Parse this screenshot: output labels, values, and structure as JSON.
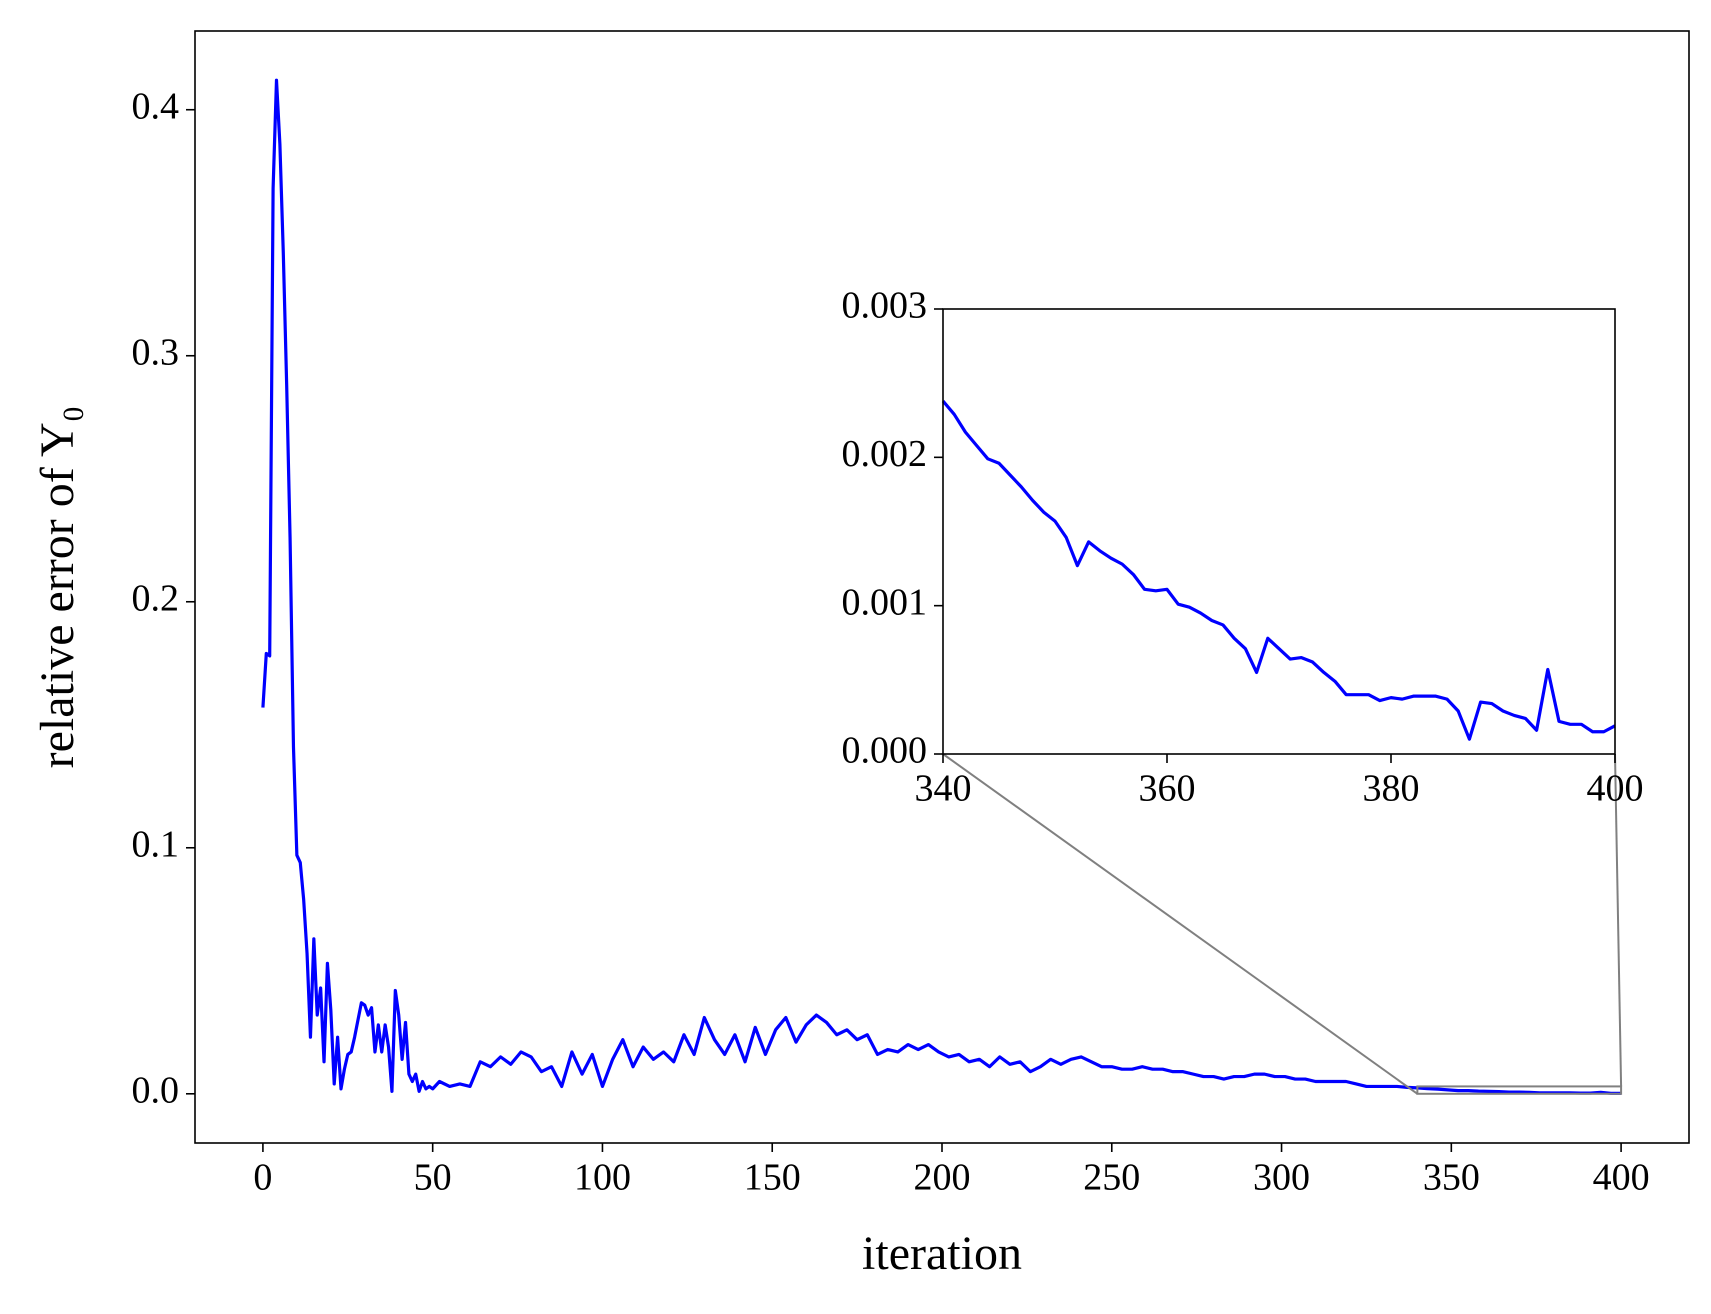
{
  "chart_data": [
    {
      "type": "line",
      "xlabel": "iteration",
      "ylabel": "relative error of Y₀",
      "color": "#0000ff",
      "xlim": [
        -20,
        420
      ],
      "ylim": [
        -0.02,
        0.432
      ],
      "xticks": [
        0,
        50,
        100,
        150,
        200,
        250,
        300,
        350,
        400
      ],
      "yticks": [
        {
          "value": 0,
          "label": "0.0"
        },
        0.1,
        0.2,
        0.3,
        0.4
      ],
      "x": [
        0,
        1,
        2,
        3,
        4,
        5,
        6,
        7,
        8,
        9,
        10,
        11,
        12,
        13,
        14,
        15,
        16,
        17,
        18,
        19,
        20,
        21,
        22,
        23,
        24,
        25,
        26,
        27,
        28,
        29,
        30,
        31,
        32,
        33,
        34,
        35,
        36,
        37,
        38,
        39,
        40,
        41,
        42,
        43,
        44,
        45,
        46,
        47,
        48,
        49,
        50,
        52,
        55,
        58,
        61,
        64,
        67,
        70,
        73,
        76,
        79,
        82,
        85,
        88,
        91,
        94,
        97,
        100,
        103,
        106,
        109,
        112,
        115,
        118,
        121,
        124,
        127,
        130,
        133,
        136,
        139,
        142,
        145,
        148,
        151,
        154,
        157,
        160,
        163,
        166,
        169,
        172,
        175,
        178,
        181,
        184,
        187,
        190,
        193,
        196,
        199,
        202,
        205,
        208,
        211,
        214,
        217,
        220,
        223,
        226,
        229,
        232,
        235,
        238,
        241,
        244,
        247,
        250,
        253,
        256,
        259,
        262,
        265,
        268,
        271,
        274,
        277,
        280,
        283,
        286,
        289,
        292,
        295,
        298,
        301,
        304,
        307,
        310,
        313,
        316,
        319,
        322,
        325,
        328,
        331,
        334,
        337,
        340,
        343,
        346,
        349,
        352,
        355,
        358,
        361,
        364,
        367,
        370,
        373,
        376,
        379,
        382,
        385,
        388,
        391,
        394,
        397,
        400
      ],
      "values": [
        0.157,
        0.179,
        0.178,
        0.368,
        0.412,
        0.386,
        0.342,
        0.288,
        0.226,
        0.141,
        0.097,
        0.094,
        0.079,
        0.057,
        0.023,
        0.063,
        0.032,
        0.043,
        0.013,
        0.053,
        0.034,
        0.004,
        0.023,
        0.002,
        0.01,
        0.016,
        0.017,
        0.023,
        0.03,
        0.037,
        0.036,
        0.032,
        0.035,
        0.017,
        0.028,
        0.017,
        0.028,
        0.019,
        0.001,
        0.042,
        0.032,
        0.014,
        0.029,
        0.008,
        0.005,
        0.008,
        0.001,
        0.005,
        0.002,
        0.003,
        0.002,
        0.005,
        0.003,
        0.004,
        0.003,
        0.013,
        0.011,
        0.015,
        0.012,
        0.017,
        0.015,
        0.009,
        0.011,
        0.003,
        0.017,
        0.008,
        0.016,
        0.003,
        0.014,
        0.022,
        0.011,
        0.019,
        0.014,
        0.017,
        0.013,
        0.024,
        0.016,
        0.031,
        0.022,
        0.016,
        0.024,
        0.013,
        0.027,
        0.016,
        0.026,
        0.031,
        0.021,
        0.028,
        0.032,
        0.029,
        0.024,
        0.026,
        0.022,
        0.024,
        0.016,
        0.018,
        0.017,
        0.02,
        0.018,
        0.02,
        0.017,
        0.015,
        0.016,
        0.013,
        0.014,
        0.011,
        0.015,
        0.012,
        0.013,
        0.009,
        0.011,
        0.014,
        0.012,
        0.014,
        0.015,
        0.013,
        0.011,
        0.011,
        0.01,
        0.01,
        0.011,
        0.01,
        0.01,
        0.009,
        0.009,
        0.008,
        0.007,
        0.007,
        0.006,
        0.007,
        0.007,
        0.008,
        0.008,
        0.007,
        0.007,
        0.006,
        0.006,
        0.005,
        0.005,
        0.005,
        0.005,
        0.004,
        0.003,
        0.003,
        0.003,
        0.003,
        0.0026,
        0.0024,
        0.0021,
        0.0019,
        0.0016,
        0.0013,
        0.0013,
        0.0011,
        0.001,
        0.0009,
        0.0007,
        0.0007,
        0.0006,
        0.0004,
        0.0004,
        0.0004,
        0.0004,
        0.0003,
        0.0003,
        0.0006,
        0.0002,
        0.0002
      ]
    },
    {
      "type": "line",
      "color": "#0000ff",
      "xlim": [
        340,
        400
      ],
      "ylim": [
        0,
        0.003
      ],
      "xticks": [
        340,
        360,
        380,
        400
      ],
      "yticks": [
        {
          "value": 0,
          "label": "0.000"
        },
        {
          "value": 0.001,
          "label": "0.001"
        },
        {
          "value": 0.002,
          "label": "0.002"
        },
        {
          "value": 0.003,
          "label": "0.003"
        }
      ],
      "x": [
        340,
        341,
        342,
        343,
        344,
        345,
        346,
        347,
        348,
        349,
        350,
        351,
        352,
        353,
        354,
        355,
        356,
        357,
        358,
        359,
        360,
        361,
        362,
        363,
        364,
        365,
        366,
        367,
        368,
        369,
        370,
        371,
        372,
        373,
        374,
        375,
        376,
        377,
        378,
        379,
        380,
        381,
        382,
        383,
        384,
        385,
        386,
        387,
        388,
        389,
        390,
        391,
        392,
        393,
        394,
        395,
        396,
        397,
        398,
        399,
        400
      ],
      "values": [
        0.00238,
        0.00229,
        0.00217,
        0.00208,
        0.00199,
        0.00196,
        0.00188,
        0.0018,
        0.00171,
        0.00163,
        0.00157,
        0.00146,
        0.00127,
        0.00143,
        0.00137,
        0.00132,
        0.00128,
        0.00121,
        0.00111,
        0.0011,
        0.00111,
        0.00101,
        0.00099,
        0.00095,
        0.0009,
        0.00087,
        0.00078,
        0.00071,
        0.00055,
        0.00078,
        0.00071,
        0.00064,
        0.00065,
        0.00062,
        0.00055,
        0.00049,
        0.0004,
        0.0004,
        0.0004,
        0.00036,
        0.00038,
        0.00037,
        0.00039,
        0.00039,
        0.00039,
        0.00037,
        0.00029,
        0.0001,
        0.00035,
        0.00034,
        0.00029,
        0.00026,
        0.00024,
        0.00016,
        0.00057,
        0.00022,
        0.0002,
        0.0002,
        0.00015,
        0.00015,
        0.00019
      ]
    }
  ]
}
